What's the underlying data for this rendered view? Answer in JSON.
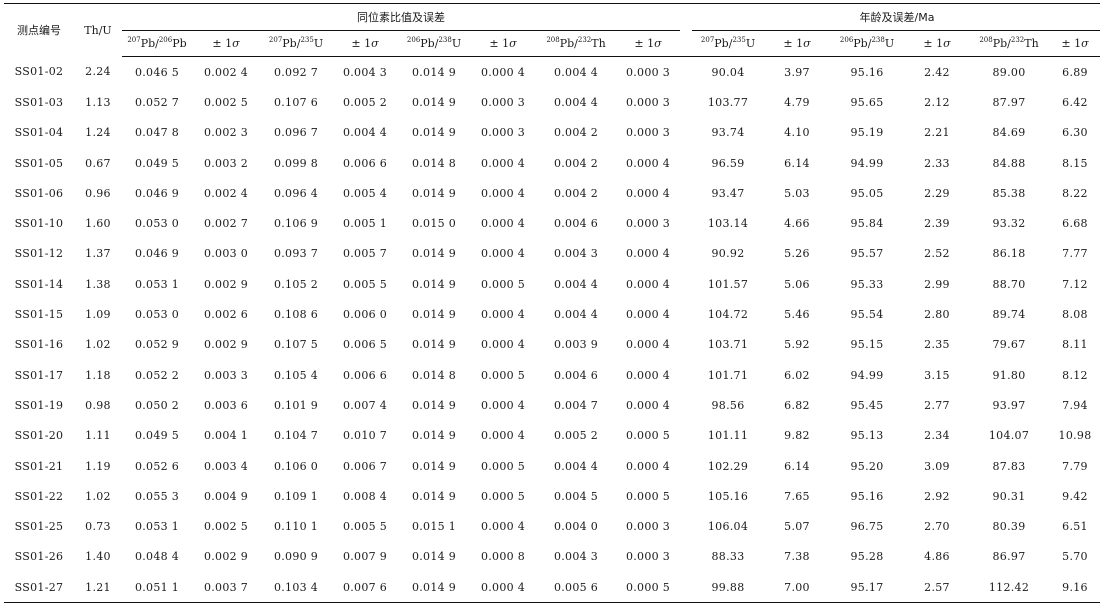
{
  "header": {
    "point_id": "测点编号",
    "th_u": "Th/U",
    "group_ratio": "同位素比值及误差",
    "group_age": "年龄及误差/Ma",
    "columns": [
      {
        "sup": "207",
        "a": "Pb/",
        "sup2": "206",
        "b": "Pb"
      },
      {
        "pm": "± 1",
        "sigma": "σ"
      },
      {
        "sup": "207",
        "a": "Pb/",
        "sup2": "235",
        "b": "U"
      },
      {
        "pm": "± 1",
        "sigma": "σ"
      },
      {
        "sup": "206",
        "a": "Pb/",
        "sup2": "238",
        "b": "U"
      },
      {
        "pm": "± 1",
        "sigma": "σ"
      },
      {
        "sup": "208",
        "a": "Pb/",
        "sup2": "232",
        "b": "Th"
      },
      {
        "pm": "± 1",
        "sigma": "σ"
      },
      {
        "sup": "207",
        "a": "Pb/",
        "sup2": "235",
        "b": "U"
      },
      {
        "pm": "± 1",
        "sigma": "σ"
      },
      {
        "sup": "206",
        "a": "Pb/",
        "sup2": "238",
        "b": "U"
      },
      {
        "pm": "± 1",
        "sigma": "σ"
      },
      {
        "sup": "208",
        "a": "Pb/",
        "sup2": "232",
        "b": "Th"
      },
      {
        "pm": "± 1",
        "sigma": "σ"
      }
    ]
  },
  "rows": [
    [
      "SS01-02",
      "2.24",
      "0.046 5",
      "0.002 4",
      "0.092 7",
      "0.004 3",
      "0.014 9",
      "0.000 4",
      "0.004 4",
      "0.000 3",
      "90.04",
      "3.97",
      "95.16",
      "2.42",
      "89.00",
      "6.89"
    ],
    [
      "SS01-03",
      "1.13",
      "0.052 7",
      "0.002 5",
      "0.107 6",
      "0.005 2",
      "0.014 9",
      "0.000 3",
      "0.004 4",
      "0.000 3",
      "103.77",
      "4.79",
      "95.65",
      "2.12",
      "87.97",
      "6.42"
    ],
    [
      "SS01-04",
      "1.24",
      "0.047 8",
      "0.002 3",
      "0.096 7",
      "0.004 4",
      "0.014 9",
      "0.000 3",
      "0.004 2",
      "0.000 3",
      "93.74",
      "4.10",
      "95.19",
      "2.21",
      "84.69",
      "6.30"
    ],
    [
      "SS01-05",
      "0.67",
      "0.049 5",
      "0.003 2",
      "0.099 8",
      "0.006 6",
      "0.014 8",
      "0.000 4",
      "0.004 2",
      "0.000 4",
      "96.59",
      "6.14",
      "94.99",
      "2.33",
      "84.88",
      "8.15"
    ],
    [
      "SS01-06",
      "0.96",
      "0.046 9",
      "0.002 4",
      "0.096 4",
      "0.005 4",
      "0.014 9",
      "0.000 4",
      "0.004 2",
      "0.000 4",
      "93.47",
      "5.03",
      "95.05",
      "2.29",
      "85.38",
      "8.22"
    ],
    [
      "SS01-10",
      "1.60",
      "0.053 0",
      "0.002 7",
      "0.106 9",
      "0.005 1",
      "0.015 0",
      "0.000 4",
      "0.004 6",
      "0.000 3",
      "103.14",
      "4.66",
      "95.84",
      "2.39",
      "93.32",
      "6.68"
    ],
    [
      "SS01-12",
      "1.37",
      "0.046 9",
      "0.003 0",
      "0.093 7",
      "0.005 7",
      "0.014 9",
      "0.000 4",
      "0.004 3",
      "0.000 4",
      "90.92",
      "5.26",
      "95.57",
      "2.52",
      "86.18",
      "7.77"
    ],
    [
      "SS01-14",
      "1.38",
      "0.053 1",
      "0.002 9",
      "0.105 2",
      "0.005 5",
      "0.014 9",
      "0.000 5",
      "0.004 4",
      "0.000 4",
      "101.57",
      "5.06",
      "95.33",
      "2.99",
      "88.70",
      "7.12"
    ],
    [
      "SS01-15",
      "1.09",
      "0.053 0",
      "0.002 6",
      "0.108 6",
      "0.006 0",
      "0.014 9",
      "0.000 4",
      "0.004 4",
      "0.000 4",
      "104.72",
      "5.46",
      "95.54",
      "2.80",
      "89.74",
      "8.08"
    ],
    [
      "SS01-16",
      "1.02",
      "0.052 9",
      "0.002 9",
      "0.107 5",
      "0.006 5",
      "0.014 9",
      "0.000 4",
      "0.003 9",
      "0.000 4",
      "103.71",
      "5.92",
      "95.15",
      "2.35",
      "79.67",
      "8.11"
    ],
    [
      "SS01-17",
      "1.18",
      "0.052 2",
      "0.003 3",
      "0.105 4",
      "0.006 6",
      "0.014 8",
      "0.000 5",
      "0.004 6",
      "0.000 4",
      "101.71",
      "6.02",
      "94.99",
      "3.15",
      "91.80",
      "8.12"
    ],
    [
      "SS01-19",
      "0.98",
      "0.050 2",
      "0.003 6",
      "0.101 9",
      "0.007 4",
      "0.014 9",
      "0.000 4",
      "0.004 7",
      "0.000 4",
      "98.56",
      "6.82",
      "95.45",
      "2.77",
      "93.97",
      "7.94"
    ],
    [
      "SS01-20",
      "1.11",
      "0.049 5",
      "0.004 1",
      "0.104 7",
      "0.010 7",
      "0.014 9",
      "0.000 4",
      "0.005 2",
      "0.000 5",
      "101.11",
      "9.82",
      "95.13",
      "2.34",
      "104.07",
      "10.98"
    ],
    [
      "SS01-21",
      "1.19",
      "0.052 6",
      "0.003 4",
      "0.106 0",
      "0.006 7",
      "0.014 9",
      "0.000 5",
      "0.004 4",
      "0.000 4",
      "102.29",
      "6.14",
      "95.20",
      "3.09",
      "87.83",
      "7.79"
    ],
    [
      "SS01-22",
      "1.02",
      "0.055 3",
      "0.004 9",
      "0.109 1",
      "0.008 4",
      "0.014 9",
      "0.000 5",
      "0.004 5",
      "0.000 5",
      "105.16",
      "7.65",
      "95.16",
      "2.92",
      "90.31",
      "9.42"
    ],
    [
      "SS01-25",
      "0.73",
      "0.053 1",
      "0.002 5",
      "0.110 1",
      "0.005 5",
      "0.015 1",
      "0.000 4",
      "0.004 0",
      "0.000 3",
      "106.04",
      "5.07",
      "96.75",
      "2.70",
      "80.39",
      "6.51"
    ],
    [
      "SS01-26",
      "1.40",
      "0.048 4",
      "0.002 9",
      "0.090 9",
      "0.007 9",
      "0.014 9",
      "0.000 8",
      "0.004 3",
      "0.000 3",
      "88.33",
      "7.38",
      "95.28",
      "4.86",
      "86.97",
      "5.70"
    ],
    [
      "SS01-27",
      "1.21",
      "0.051 1",
      "0.003 7",
      "0.103 4",
      "0.007 6",
      "0.014 9",
      "0.000 4",
      "0.005 6",
      "0.000 5",
      "99.88",
      "7.00",
      "95.17",
      "2.57",
      "112.42",
      "9.16"
    ]
  ]
}
